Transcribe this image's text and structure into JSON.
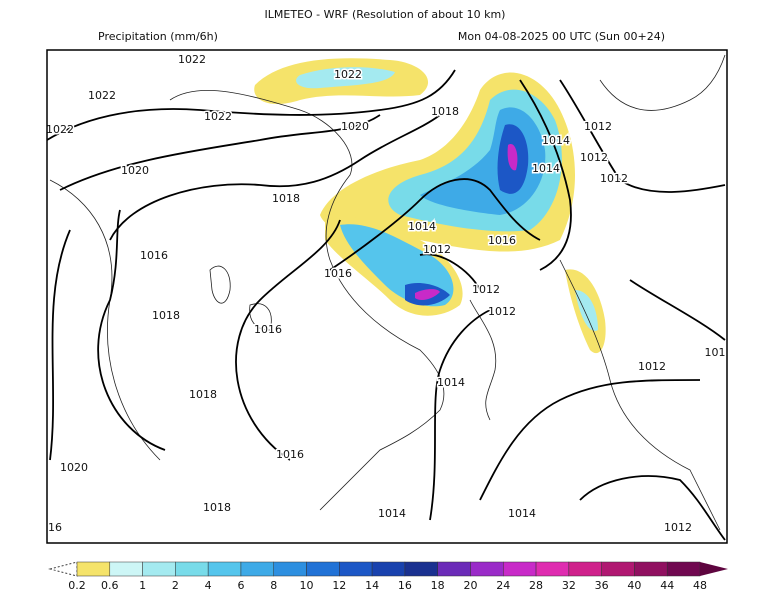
{
  "header": {
    "title": "ILMETEO - WRF (Resolution of about 10 km)",
    "variable": "Precipitation (mm/6h)",
    "valid_time": "Mon 04-08-2025 00 UTC (Sun 00+24)"
  },
  "isobar_labels": [
    "1022",
    "1022",
    "1022",
    "1022",
    "1022",
    "1020",
    "1018",
    "1014",
    "1012",
    "1012",
    "1014",
    "1012",
    "1020",
    "1018",
    "1014",
    "1012",
    "1016",
    "1016",
    "1016",
    "1012",
    "1012",
    "1018",
    "1016",
    "1012",
    "101",
    "1014",
    "1018",
    "1016",
    "1020",
    "1018",
    "1014",
    "1014",
    "1012",
    "16"
  ],
  "colorbar": {
    "levels": [
      0.2,
      0.6,
      1,
      2,
      4,
      6,
      8,
      10,
      12,
      14,
      16,
      18,
      20,
      24,
      28,
      32,
      36,
      40,
      44,
      48
    ],
    "colors": [
      "#f5e36a",
      "#cdf6f6",
      "#a4eaf0",
      "#78dbe9",
      "#55c5ec",
      "#3eaae7",
      "#2d8fe0",
      "#2172d6",
      "#1c57c6",
      "#1942ae",
      "#1a3190",
      "#6b2bb8",
      "#9a2bc8",
      "#c82ac8",
      "#df2cb0",
      "#cf218b",
      "#b01871",
      "#901060",
      "#700850"
    ],
    "over_color": "#5e053f"
  }
}
